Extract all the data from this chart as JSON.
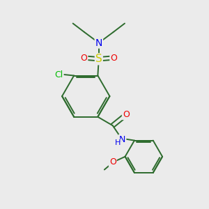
{
  "background_color": "#ebebeb",
  "bond_color": "#2d6b2d",
  "atom_colors": {
    "N": "#0000ee",
    "S": "#cccc00",
    "O": "#ee0000",
    "Cl": "#00bb00",
    "C": "#2d6b2d",
    "H": "#2d6b2d"
  },
  "figsize": [
    3.0,
    3.0
  ],
  "dpi": 100
}
